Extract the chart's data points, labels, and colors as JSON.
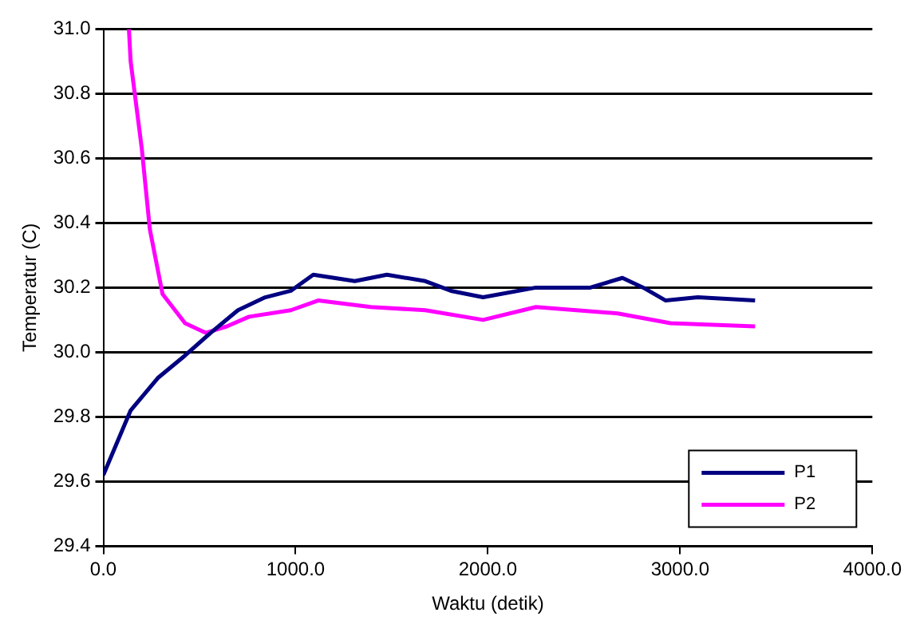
{
  "chart_data": {
    "type": "line",
    "xlabel": "Waktu (detik)",
    "ylabel": "Temperatur (C)",
    "xlim": [
      0,
      4000
    ],
    "xticks": [
      {
        "value": 0,
        "label": "0.0"
      },
      {
        "value": 1000,
        "label": "1000.0"
      },
      {
        "value": 2000,
        "label": "2000.0"
      },
      {
        "value": 3000,
        "label": "3000.0"
      },
      {
        "value": 4000,
        "label": "4000.0"
      }
    ],
    "ylim": [
      29.4,
      31.0
    ],
    "yticks": [
      {
        "value": 29.4,
        "label": "29.4"
      },
      {
        "value": 29.6,
        "label": "29.6"
      },
      {
        "value": 29.8,
        "label": "29.8"
      },
      {
        "value": 30.0,
        "label": "30.0"
      },
      {
        "value": 30.2,
        "label": "30.2"
      },
      {
        "value": 30.4,
        "label": "30.4"
      },
      {
        "value": 30.6,
        "label": "30.6"
      },
      {
        "value": 30.8,
        "label": "30.8"
      },
      {
        "value": 31.0,
        "label": "31.0"
      }
    ],
    "grid": "y",
    "legend": "bottom right",
    "marker": "none",
    "line_style": "solid",
    "series": [
      {
        "name": "P1",
        "color": "#000080",
        "x": [
          0,
          142,
          283,
          425,
          558,
          700,
          842,
          975,
          1092,
          1308,
          1475,
          1675,
          1808,
          1975,
          2250,
          2533,
          2700,
          2808,
          2925,
          3092,
          3390
        ],
        "values": [
          29.62,
          29.82,
          29.92,
          29.99,
          30.06,
          30.13,
          30.17,
          30.19,
          30.24,
          30.22,
          30.24,
          30.22,
          30.19,
          30.17,
          30.2,
          30.2,
          30.23,
          30.2,
          30.16,
          30.17,
          30.16
        ]
      },
      {
        "name": "P2",
        "color": "#ff00ff",
        "x": [
          133,
          142,
          200,
          242,
          308,
          425,
          533,
          642,
          758,
          975,
          1117,
          1392,
          1675,
          1975,
          2250,
          2675,
          2950,
          3390
        ],
        "values": [
          31.0,
          30.9,
          30.63,
          30.38,
          30.18,
          30.09,
          30.06,
          30.08,
          30.11,
          30.13,
          30.16,
          30.14,
          30.13,
          30.1,
          30.14,
          30.12,
          30.09,
          30.08
        ]
      }
    ]
  }
}
